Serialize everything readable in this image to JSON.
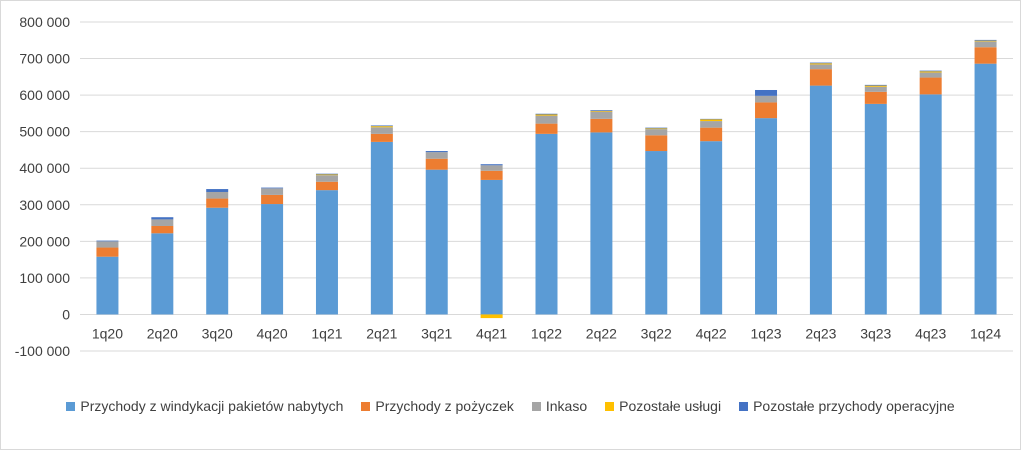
{
  "chart_data": {
    "type": "bar",
    "stacked": true,
    "categories": [
      "1q20",
      "2q20",
      "3q20",
      "4q20",
      "1q21",
      "2q21",
      "3q21",
      "4q21",
      "1q22",
      "2q22",
      "3q22",
      "4q22",
      "1q23",
      "2q23",
      "3q23",
      "4q23",
      "1q24"
    ],
    "series": [
      {
        "name": "Przychody z windykacji pakietów nabytych",
        "color": "#5b9bd5",
        "values": [
          158000,
          222000,
          292000,
          302000,
          340000,
          472000,
          396000,
          368000,
          494000,
          498000,
          447000,
          474000,
          537000,
          626000,
          576000,
          602000,
          686000
        ]
      },
      {
        "name": "Przychody z pożyczek",
        "color": "#ed7d31",
        "values": [
          25000,
          20000,
          25000,
          25000,
          23000,
          22000,
          30000,
          25000,
          28000,
          37000,
          43000,
          37000,
          43000,
          45000,
          33000,
          46000,
          45000
        ]
      },
      {
        "name": "Inkaso",
        "color": "#a5a5a5",
        "values": [
          17000,
          18000,
          18000,
          18000,
          18000,
          18000,
          18000,
          15000,
          22000,
          20000,
          17000,
          18000,
          18000,
          13000,
          14000,
          14000,
          16000
        ]
      },
      {
        "name": "Pozostałe usługi",
        "color": "#ffc000",
        "values": [
          0,
          0,
          0,
          0,
          2000,
          3000,
          0,
          -10000,
          3000,
          2000,
          2000,
          5000,
          0,
          3000,
          3000,
          3000,
          2000
        ]
      },
      {
        "name": "Pozostałe przychody operacyjne",
        "color": "#4472c4",
        "values": [
          2000,
          6000,
          8000,
          2000,
          2000,
          2000,
          3000,
          3000,
          2000,
          2000,
          2000,
          1000,
          16000,
          2000,
          2000,
          2000,
          2000
        ]
      }
    ],
    "ylim": [
      -100000,
      800000
    ],
    "yticks": [
      "-100 000",
      "0",
      "100 000",
      "200 000",
      "300 000",
      "400 000",
      "500 000",
      "600 000",
      "700 000",
      "800 000"
    ],
    "ytick_values": [
      -100000,
      0,
      100000,
      200000,
      300000,
      400000,
      500000,
      600000,
      700000,
      800000
    ],
    "grid": true,
    "legend_position": "bottom",
    "title": "",
    "xlabel": "",
    "ylabel": ""
  }
}
